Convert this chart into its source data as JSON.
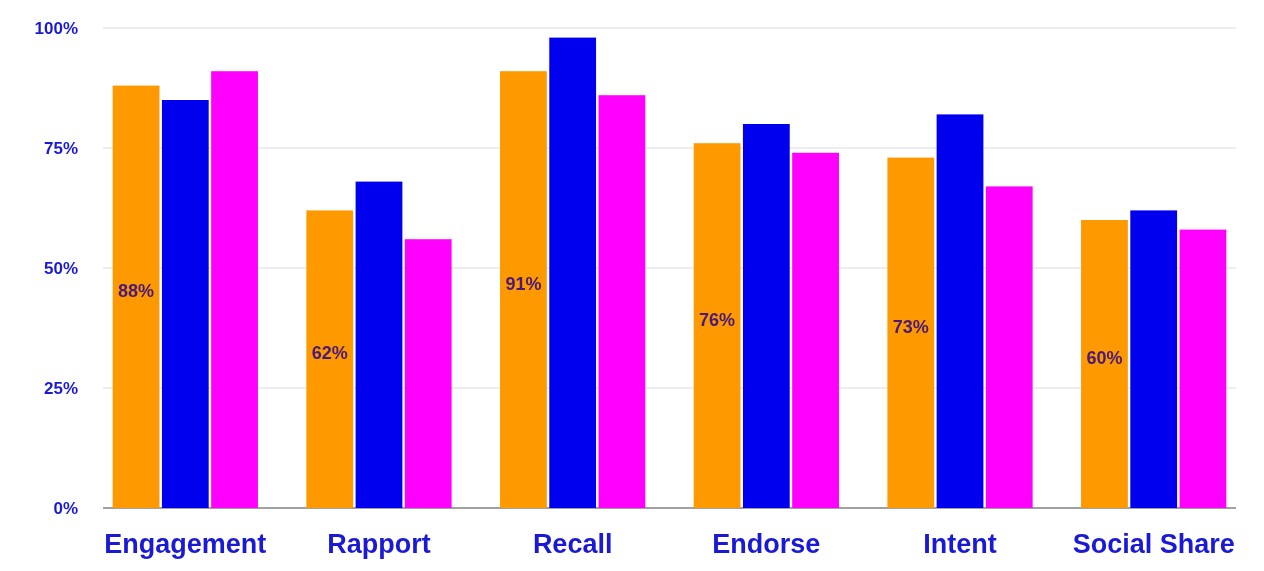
{
  "chart_data": {
    "type": "bar",
    "categories": [
      "Engagement",
      "Rapport",
      "Recall",
      "Endorse",
      "Intent",
      "Social Share"
    ],
    "series": [
      {
        "color": "#ff9900",
        "values": [
          88,
          62,
          91,
          76,
          73,
          60
        ],
        "value_labels": [
          "88%",
          "62%",
          "91%",
          "76%",
          "73%",
          "60%"
        ]
      },
      {
        "color": "#0000ee",
        "values": [
          85,
          68,
          98,
          80,
          82,
          62
        ]
      },
      {
        "color": "#ff00ff",
        "values": [
          91,
          56,
          86,
          74,
          67,
          58
        ]
      }
    ],
    "ylim": [
      0,
      100
    ],
    "yticks": [
      {
        "value": 0,
        "label": "0%"
      },
      {
        "value": 25,
        "label": "25%"
      },
      {
        "value": 50,
        "label": "50%"
      },
      {
        "value": 75,
        "label": "75%"
      },
      {
        "value": 100,
        "label": "100%"
      }
    ],
    "grid": "y"
  }
}
